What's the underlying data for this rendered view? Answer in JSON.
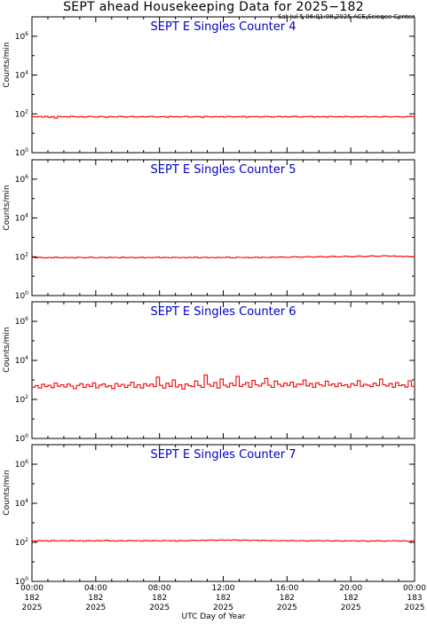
{
  "title": "SEPT ahead Housekeeping Data for 2025−182",
  "timestamp": "Sat Jul  5 06:01:08 2025 ACE Science Center",
  "x_axis_label": "UTC Day of Year",
  "y_axis_label": "Counts/min",
  "colors": {
    "trace": "#ff0000",
    "panel_title": "#0000cc",
    "axes": "#000000"
  },
  "x_ticks": [
    {
      "time": "00:00",
      "doy": "182",
      "year": "2025"
    },
    {
      "time": "04:00",
      "doy": "182",
      "year": "2025"
    },
    {
      "time": "08:00",
      "doy": "182",
      "year": "2025"
    },
    {
      "time": "12:00",
      "doy": "182",
      "year": "2025"
    },
    {
      "time": "16:00",
      "doy": "182",
      "year": "2025"
    },
    {
      "time": "20:00",
      "doy": "182",
      "year": "2025"
    },
    {
      "time": "00:00",
      "doy": "183",
      "year": "2025"
    }
  ],
  "y_ticks": [
    {
      "base": "10",
      "exp": "0"
    },
    {
      "base": "10",
      "exp": "2"
    },
    {
      "base": "10",
      "exp": "4"
    },
    {
      "base": "10",
      "exp": "6"
    }
  ],
  "chart_data": [
    {
      "type": "line",
      "title": "SEPT E Singles Counter 4",
      "xlabel": "",
      "ylabel": "Counts/min",
      "xlim": [
        0,
        24
      ],
      "ylim": [
        1,
        10000000
      ],
      "yscale": "log",
      "step": true,
      "series": [
        {
          "x_start_hour": 0,
          "x_step_hours": 0.2,
          "values": [
            72,
            70,
            75,
            68,
            74,
            66,
            73,
            60,
            74,
            70,
            72,
            68,
            76,
            71,
            69,
            73,
            67,
            72,
            75,
            70,
            68,
            74,
            71,
            66,
            73,
            70,
            69,
            75,
            72,
            67,
            71,
            74,
            68,
            70,
            73,
            69,
            72,
            75,
            70,
            68,
            71,
            73,
            67,
            74,
            70,
            72,
            69,
            71,
            75,
            68,
            70,
            73,
            72,
            66,
            74,
            71,
            69,
            72,
            70,
            73,
            68,
            75,
            71,
            69,
            72,
            70,
            74,
            67,
            72,
            71,
            73,
            69,
            70,
            75,
            72,
            68,
            71,
            74,
            70,
            73,
            69,
            72,
            76,
            70,
            68,
            73,
            71,
            74,
            69,
            72,
            70,
            73,
            68,
            75,
            71,
            70,
            72,
            69,
            74,
            71,
            68,
            73,
            70,
            72,
            75,
            69,
            71,
            73,
            70,
            68,
            74,
            72,
            69,
            71,
            73,
            70,
            68,
            72,
            74,
            71
          ]
        }
      ]
    },
    {
      "type": "line",
      "title": "SEPT E Singles Counter 5",
      "xlabel": "",
      "ylabel": "Counts/min",
      "xlim": [
        0,
        24
      ],
      "ylim": [
        1,
        10000000
      ],
      "yscale": "log",
      "step": true,
      "series": [
        {
          "x_start_hour": 0,
          "x_step_hours": 0.2,
          "values": [
            92,
            88,
            95,
            90,
            87,
            93,
            89,
            96,
            91,
            88,
            94,
            90,
            92,
            87,
            95,
            93,
            89,
            91,
            96,
            90,
            88,
            94,
            92,
            89,
            95,
            91,
            93,
            88,
            96,
            90,
            92,
            94,
            89,
            91,
            95,
            88,
            93,
            90,
            92,
            96,
            89,
            94,
            91,
            88,
            95,
            92,
            90,
            93,
            89,
            94,
            91,
            96,
            88,
            92,
            95,
            90,
            93,
            89,
            94,
            91,
            92,
            96,
            90,
            88,
            95,
            93,
            91,
            94,
            89,
            92,
            96,
            90,
            95,
            93,
            91,
            97,
            94,
            96,
            99,
            95,
            93,
            98,
            101,
            97,
            95,
            99,
            102,
            98,
            96,
            100,
            104,
            99,
            97,
            102,
            106,
            100,
            98,
            103,
            108,
            102,
            99,
            104,
            110,
            105,
            101,
            106,
            112,
            108,
            104,
            109,
            115,
            110,
            106,
            111,
            104,
            107,
            102,
            105,
            101,
            98
          ]
        }
      ]
    },
    {
      "type": "line",
      "title": "SEPT E Singles Counter 6",
      "xlabel": "",
      "ylabel": "Counts/min",
      "xlim": [
        0,
        24
      ],
      "ylim": [
        1,
        10000000
      ],
      "yscale": "log",
      "step": true,
      "series": [
        {
          "x_start_hour": 0,
          "x_step_hours": 0.2,
          "values": [
            420,
            510,
            380,
            600,
            450,
            530,
            400,
            690,
            470,
            560,
            430,
            610,
            480,
            350,
            520,
            640,
            410,
            580,
            460,
            700,
            390,
            540,
            620,
            440,
            500,
            360,
            660,
            470,
            590,
            410,
            530,
            750,
            420,
            560,
            380,
            640,
            490,
            610,
            450,
            1400,
            520,
            380,
            680,
            460,
            990,
            430,
            570,
            340,
            620,
            500,
            450,
            880,
            520,
            410,
            1800,
            600,
            470,
            740,
            380,
            1100,
            540,
            430,
            690,
            510,
            1500,
            460,
            580,
            720,
            420,
            940,
            560,
            480,
            650,
            1200,
            530,
            410,
            870,
            600,
            470,
            690,
            520,
            760,
            440,
            610,
            580,
            980,
            490,
            650,
            420,
            710,
            560,
            480,
            860,
            530,
            620,
            450,
            680,
            500,
            570,
            430,
            640,
            520,
            910,
            470,
            600,
            540,
            450,
            680,
            510,
            1100,
            560,
            480,
            650,
            420,
            720,
            510,
            560,
            430,
            900,
            470
          ]
        }
      ]
    },
    {
      "type": "line",
      "title": "SEPT E Singles Counter 7",
      "xlabel": "",
      "ylabel": "Counts/min",
      "xlim": [
        0,
        24
      ],
      "ylim": [
        1,
        10000000
      ],
      "yscale": "log",
      "step": true,
      "series": [
        {
          "x_start_hour": 0,
          "x_step_hours": 0.2,
          "values": [
            120,
            115,
            125,
            118,
            122,
            113,
            126,
            119,
            117,
            124,
            121,
            116,
            127,
            120,
            118,
            123,
            115,
            125,
            121,
            117,
            124,
            119,
            122,
            128,
            118,
            121,
            115,
            124,
            120,
            117,
            126,
            122,
            119,
            123,
            116,
            125,
            121,
            118,
            124,
            120,
            117,
            126,
            123,
            119,
            122,
            115,
            125,
            121,
            118,
            124,
            127,
            122,
            125,
            130,
            124,
            128,
            132,
            126,
            129,
            133,
            127,
            131,
            128,
            134,
            129,
            126,
            131,
            128,
            124,
            130,
            127,
            122,
            128,
            125,
            121,
            126,
            123,
            119,
            125,
            122,
            118,
            124,
            121,
            117,
            123,
            120,
            116,
            122,
            119,
            125,
            121,
            117,
            123,
            120,
            116,
            122,
            118,
            114,
            121,
            117,
            123,
            119,
            115,
            121,
            118,
            112,
            120,
            116,
            122,
            118,
            113,
            120,
            117,
            123,
            119,
            115,
            121,
            117,
            113,
            120
          ]
        }
      ]
    }
  ]
}
